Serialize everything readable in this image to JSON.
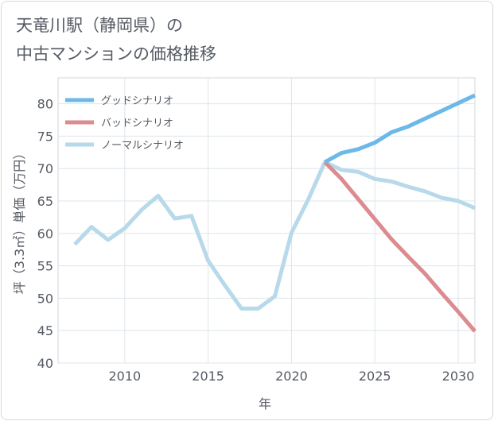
{
  "title_lines": [
    "天竜川駅（静岡県）の",
    "中古マンションの価格推移"
  ],
  "chart_data": {
    "type": "line",
    "xlabel": "年",
    "ylabel": "坪（3.3㎡）単価（万円）",
    "xlim": [
      2006,
      2031
    ],
    "ylim": [
      40,
      84
    ],
    "xticks": [
      2010,
      2015,
      2020,
      2025,
      2030
    ],
    "yticks": [
      40,
      45,
      50,
      55,
      60,
      65,
      70,
      75,
      80
    ],
    "grid": true,
    "legend_position": "top-left",
    "series": [
      {
        "name": "グッドシナリオ",
        "color": "#6cb8e8",
        "x": [
          2022,
          2023,
          2024,
          2025,
          2026,
          2027,
          2028,
          2029,
          2030,
          2031
        ],
        "values": [
          71.0,
          72.4,
          73.0,
          74.0,
          75.6,
          76.5,
          77.7,
          78.9,
          80.1,
          81.3
        ]
      },
      {
        "name": "バッドシナリオ",
        "color": "#dc8b91",
        "x": [
          2022,
          2023,
          2024,
          2025,
          2026,
          2027,
          2028,
          2029,
          2030,
          2031
        ],
        "values": [
          71.0,
          68.4,
          65.3,
          62.2,
          59.1,
          56.4,
          53.8,
          50.8,
          47.9,
          44.9
        ]
      },
      {
        "name": "ノーマルシナリオ",
        "color": "#b7d9ea",
        "x": [
          2007,
          2008,
          2009,
          2010,
          2011,
          2012,
          2013,
          2014,
          2015,
          2016,
          2017,
          2018,
          2019,
          2020,
          2021,
          2022,
          2023,
          2024,
          2025,
          2026,
          2027,
          2028,
          2029,
          2030,
          2031
        ],
        "values": [
          58.3,
          61.0,
          59.0,
          60.8,
          63.6,
          65.8,
          62.3,
          62.7,
          55.8,
          52.0,
          48.4,
          48.4,
          50.3,
          60.1,
          65.2,
          71.0,
          69.8,
          69.5,
          68.4,
          68.0,
          67.2,
          66.5,
          65.5,
          65.0,
          63.9
        ]
      }
    ]
  }
}
